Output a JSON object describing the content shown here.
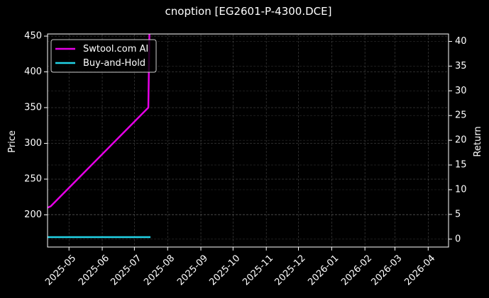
{
  "chart_data": {
    "type": "line",
    "title": "cnoption [EG2601-P-4300.DCE]",
    "xlabel": "",
    "ylabel": "Price",
    "y2label": "Return",
    "x_ticks": [
      "2025-05",
      "2025-06",
      "2025-07",
      "2025-08",
      "2025-09",
      "2025-10",
      "2025-11",
      "2025-12",
      "2026-01",
      "2026-02",
      "2026-03",
      "2026-04"
    ],
    "x_range": [
      "2025-04-11",
      "2026-04-20"
    ],
    "ylim": [
      155,
      453
    ],
    "y_ticks": [
      200,
      250,
      300,
      350,
      400,
      450
    ],
    "y2lim": [
      -1.6,
      41.5
    ],
    "y2_ticks": [
      0,
      5,
      10,
      15,
      20,
      25,
      30,
      35,
      40
    ],
    "grid": true,
    "legend_position": "upper-left",
    "series": [
      {
        "name": "Swtool.com AI",
        "axis": "left",
        "color": "#e600e6",
        "points": [
          {
            "x": "2025-04-11",
            "y": 210
          },
          {
            "x": "2025-04-14",
            "y": 212
          },
          {
            "x": "2025-07-14",
            "y": 350
          },
          {
            "x": "2025-07-15",
            "y": 453
          }
        ]
      },
      {
        "name": "Buy-and-Hold",
        "axis": "right",
        "color": "#22d3e6",
        "points": [
          {
            "x": "2025-04-11",
            "y": 0.4
          },
          {
            "x": "2025-07-16",
            "y": 0.4
          }
        ]
      }
    ]
  }
}
